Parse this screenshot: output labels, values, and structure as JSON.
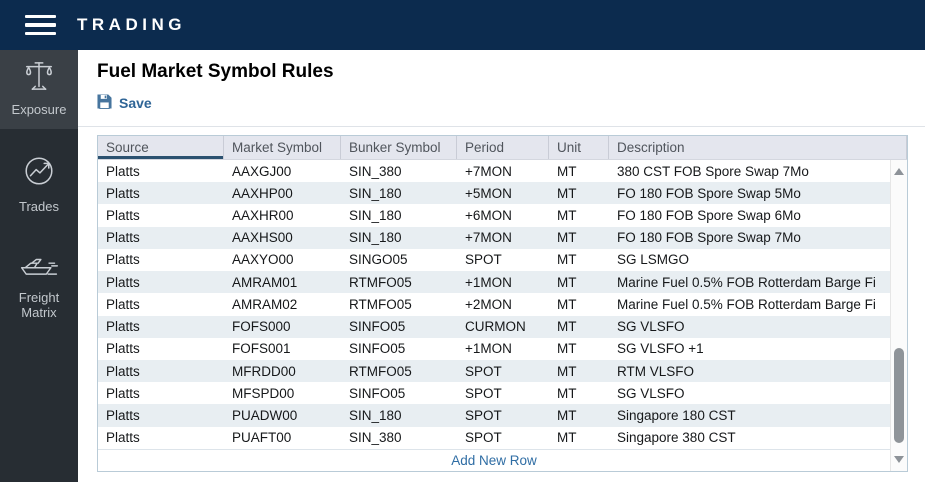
{
  "navbar": {
    "title": "TRADING"
  },
  "sidebar": {
    "items": [
      {
        "label": "Exposure",
        "icon": "scale-icon",
        "active": true
      },
      {
        "label": "Trades",
        "icon": "trend-chart-icon",
        "active": false
      },
      {
        "label": "Freight Matrix",
        "icon": "ship-icon",
        "active": false
      }
    ]
  },
  "page": {
    "title": "Fuel Market Symbol Rules"
  },
  "toolbar": {
    "save_label": "Save"
  },
  "table": {
    "columns": [
      "Source",
      "Market Symbol",
      "Bunker Symbol",
      "Period",
      "Unit",
      "Description"
    ],
    "sorted_column": "Source",
    "rows": [
      [
        "Platts",
        "AAXGJ00",
        "SIN_380",
        "+7MON",
        "MT",
        "380 CST FOB Spore Swap 7Mo"
      ],
      [
        "Platts",
        "AAXHP00",
        "SIN_180",
        "+5MON",
        "MT",
        "FO 180 FOB Spore Swap 5Mo"
      ],
      [
        "Platts",
        "AAXHR00",
        "SIN_180",
        "+6MON",
        "MT",
        "FO 180 FOB Spore Swap 6Mo"
      ],
      [
        "Platts",
        "AAXHS00",
        "SIN_180",
        "+7MON",
        "MT",
        "FO 180 FOB Spore Swap 7Mo"
      ],
      [
        "Platts",
        "AAXYO00",
        "SINGO05",
        "SPOT",
        "MT",
        "SG LSMGO"
      ],
      [
        "Platts",
        "AMRAM01",
        "RTMFO05",
        "+1MON",
        "MT",
        "Marine Fuel 0.5% FOB Rotterdam Barge Fi"
      ],
      [
        "Platts",
        "AMRAM02",
        "RTMFO05",
        "+2MON",
        "MT",
        "Marine Fuel 0.5% FOB Rotterdam Barge Fi"
      ],
      [
        "Platts",
        "FOFS000",
        "SINFO05",
        "CURMON",
        "MT",
        "SG VLSFO"
      ],
      [
        "Platts",
        "FOFS001",
        "SINFO05",
        "+1MON",
        "MT",
        "SG VLSFO +1"
      ],
      [
        "Platts",
        "MFRDD00",
        "RTMFO05",
        "SPOT",
        "MT",
        "RTM VLSFO"
      ],
      [
        "Platts",
        "MFSPD00",
        "SINFO05",
        "SPOT",
        "MT",
        "SG VLSFO"
      ],
      [
        "Platts",
        "PUADW00",
        "SIN_180",
        "SPOT",
        "MT",
        "Singapore 180 CST"
      ],
      [
        "Platts",
        "PUAFT00",
        "SIN_380",
        "SPOT",
        "MT",
        "Singapore 380 CST"
      ]
    ],
    "footer_link": "Add New Row"
  },
  "colors": {
    "navbar_bg": "#0c2b4e",
    "sidebar_bg": "#272d33",
    "sidebar_active_bg": "#3a4046",
    "accent_blue": "#2f6da4",
    "save_blue": "#2e6496",
    "header_bg": "#e4e6ee",
    "stripe_bg": "#e8eef2",
    "sorted_underline": "#2b5170",
    "table_border": "#b9cbd7"
  }
}
